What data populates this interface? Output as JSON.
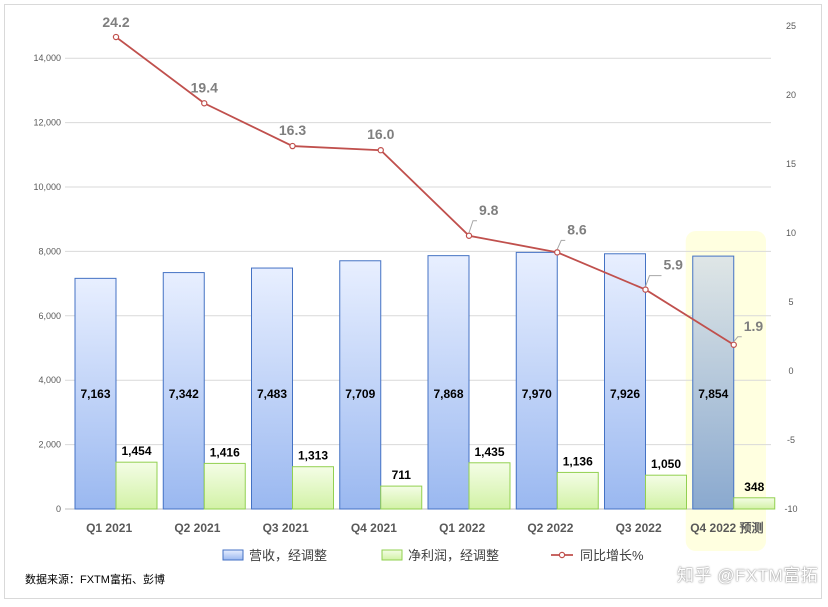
{
  "chart_data": {
    "type": "bar",
    "categories": [
      "Q1 2021",
      "Q2 2021",
      "Q3 2021",
      "Q4 2021",
      "Q1 2022",
      "Q2 2022",
      "Q3 2022",
      "Q4 2022 预测"
    ],
    "series": [
      {
        "name": "营收，经调整",
        "type": "bar",
        "axis": "left",
        "values": [
          7163,
          7342,
          7483,
          7709,
          7868,
          7970,
          7926,
          7854
        ],
        "labels": [
          "7,163",
          "7,342",
          "7,483",
          "7,709",
          "7,868",
          "7,970",
          "7,926",
          "7,854"
        ],
        "color": "#4472c4"
      },
      {
        "name": "净利润，经调整",
        "type": "bar",
        "axis": "left",
        "values": [
          1454,
          1416,
          1313,
          711,
          1435,
          1136,
          1050,
          348
        ],
        "labels": [
          "1,454",
          "1,416",
          "1,313",
          "711",
          "1,435",
          "1,136",
          "1,050",
          "348"
        ],
        "color": "#92d050"
      },
      {
        "name": "同比增长%",
        "type": "line",
        "axis": "right",
        "values": [
          24.2,
          19.4,
          16.3,
          16.0,
          9.8,
          8.6,
          5.9,
          1.9
        ],
        "labels": [
          "24.2",
          "19.4",
          "16.3",
          "16.0",
          "9.8",
          "8.6",
          "5.9",
          "1.9"
        ],
        "color": "#c0504d"
      }
    ],
    "y_left": {
      "min": 0,
      "max": 15000,
      "ticks": [
        0,
        2000,
        4000,
        6000,
        8000,
        10000,
        12000,
        14000
      ],
      "tick_labels": [
        "0",
        "2,000",
        "4,000",
        "6,000",
        "8,000",
        "10,000",
        "12,000",
        "14,000"
      ]
    },
    "y_right": {
      "min": -10,
      "max": 25,
      "ticks": [
        -10,
        -5,
        0,
        5,
        10,
        15,
        20,
        25
      ],
      "tick_labels": [
        "-10",
        "-5",
        "0",
        "5",
        "10",
        "15",
        "20",
        "25"
      ]
    },
    "highlight_category": "Q4 2022 预测",
    "highlight_color": "#ffffe0",
    "grid": "horizontal",
    "legend_position": "bottom"
  },
  "source": "数据来源：FXTM富拓、彭博",
  "watermark": "知乎 @FXTM富拓"
}
